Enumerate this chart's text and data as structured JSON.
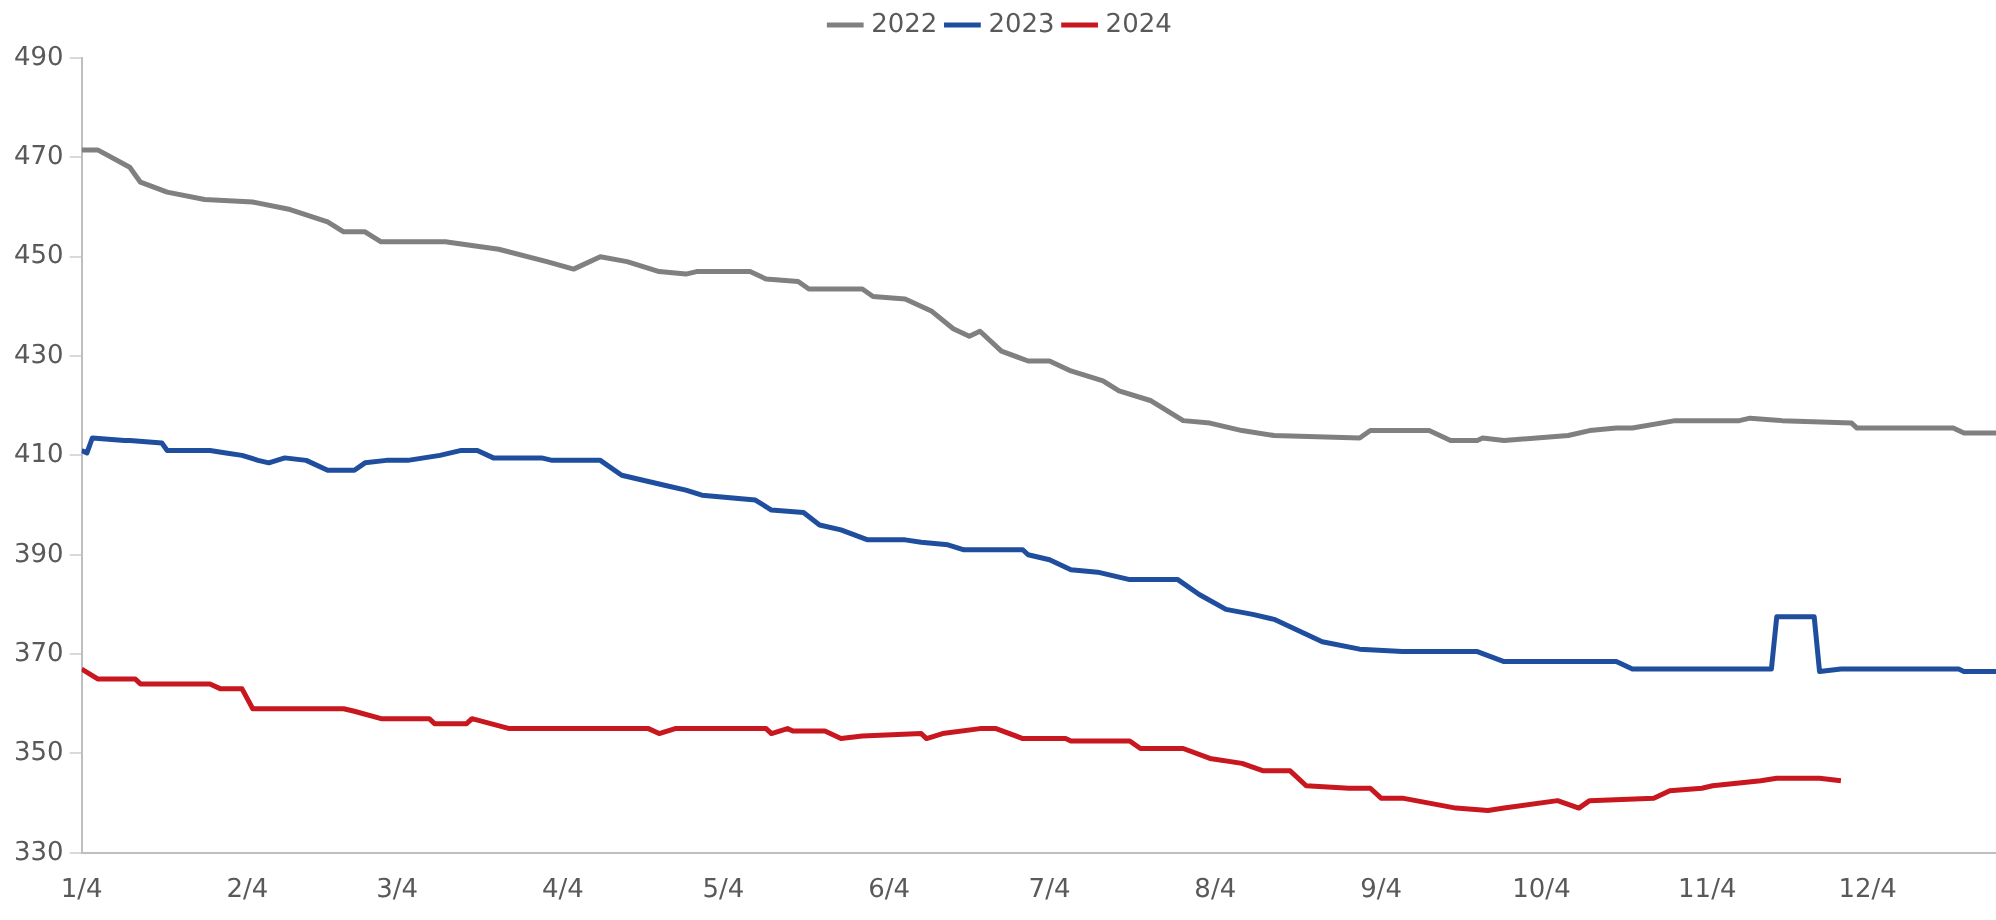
{
  "chart_data": {
    "type": "line",
    "xlim": [
      "--01-04",
      "--12-28"
    ],
    "xticks": [
      {
        "value": "--01-04",
        "label": "1/4"
      },
      {
        "value": "--02-04",
        "label": "2/4"
      },
      {
        "value": "--03-04",
        "label": "3/4"
      },
      {
        "value": "--04-04",
        "label": "4/4"
      },
      {
        "value": "--05-04",
        "label": "5/4"
      },
      {
        "value": "--06-04",
        "label": "6/4"
      },
      {
        "value": "--07-04",
        "label": "7/4"
      },
      {
        "value": "--08-04",
        "label": "8/4"
      },
      {
        "value": "--09-04",
        "label": "9/4"
      },
      {
        "value": "--10-04",
        "label": "10/4"
      },
      {
        "value": "--11-04",
        "label": "11/4"
      },
      {
        "value": "--12-04",
        "label": "12/4"
      }
    ],
    "ylim": [
      330,
      490
    ],
    "yticks": [
      330,
      350,
      370,
      390,
      410,
      430,
      450,
      470,
      490
    ],
    "grid": false,
    "legend": "top",
    "marker": "none",
    "line_style": "solid",
    "series": [
      {
        "name": "2022",
        "color": "#808080",
        "x": [
          "--01-04",
          "--01-07",
          "--01-13",
          "--01-15",
          "--01-20",
          "--01-27",
          "--02-05",
          "--02-12",
          "--02-19",
          "--02-22",
          "--02-26",
          "--03-01",
          "--03-13",
          "--03-23",
          "--04-01",
          "--04-06",
          "--04-11",
          "--04-16",
          "--04-22",
          "--04-27",
          "--04-29",
          "--05-09",
          "--05-12",
          "--05-18",
          "--05-20",
          "--05-30",
          "--06-01",
          "--06-07",
          "--06-12",
          "--06-16",
          "--06-19",
          "--06-21",
          "--06-25",
          "--06-30",
          "--07-04",
          "--07-08",
          "--07-14",
          "--07-17",
          "--07-23",
          "--07-29",
          "--08-03",
          "--08-09",
          "--08-15",
          "--08-31",
          "--09-02",
          "--09-13",
          "--09-17",
          "--09-22",
          "--09-23",
          "--09-27",
          "--10-09",
          "--10-13",
          "--10-18",
          "--10-21",
          "--10-29",
          "--11-10",
          "--11-12",
          "--11-18",
          "--12-01",
          "--12-02",
          "--12-20",
          "--12-22",
          "--12-28"
        ],
        "values": [
          471.5,
          471.5,
          468,
          465,
          463,
          461.5,
          461,
          459.5,
          457,
          455,
          455,
          453,
          453,
          451.5,
          449,
          447.5,
          450,
          449,
          447,
          446.5,
          447,
          447,
          445.5,
          445,
          443.5,
          443.5,
          442,
          441.5,
          439,
          435.5,
          434,
          435,
          431,
          429,
          429,
          427,
          425,
          423,
          421,
          417,
          416.5,
          415,
          414,
          413.5,
          415,
          415,
          413,
          413,
          413.5,
          413,
          414,
          415,
          415.5,
          415.5,
          417,
          417,
          417.5,
          417,
          416.5,
          415.5,
          415.5,
          414.5,
          414.5
        ]
      },
      {
        "name": "2023",
        "color": "#1f4e9e",
        "x": [
          "--01-04",
          "--01-05",
          "--01-06",
          "--01-12",
          "--01-13",
          "--01-19",
          "--01-20",
          "--01-28",
          "--01-31",
          "--02-03",
          "--02-06",
          "--02-08",
          "--02-11",
          "--02-15",
          "--02-19",
          "--02-24",
          "--02-26",
          "--03-02",
          "--03-06",
          "--03-12",
          "--03-16",
          "--03-19",
          "--03-22",
          "--03-31",
          "--04-02",
          "--04-11",
          "--04-15",
          "--04-19",
          "--04-23",
          "--04-27",
          "--04-30",
          "--05-10",
          "--05-13",
          "--05-19",
          "--05-22",
          "--05-26",
          "--05-31",
          "--06-07",
          "--06-10",
          "--06-15",
          "--06-18",
          "--06-21",
          "--06-29",
          "--06-30",
          "--07-04",
          "--07-08",
          "--07-13",
          "--07-19",
          "--07-28",
          "--08-01",
          "--08-06",
          "--08-11",
          "--08-15",
          "--08-19",
          "--08-24",
          "--08-31",
          "--09-08",
          "--09-22",
          "--09-27",
          "--10-18",
          "--10-21",
          "--11-16",
          "--11-17",
          "--11-24",
          "--11-25",
          "--11-29",
          "--12-21",
          "--12-22",
          "--12-28"
        ],
        "values": [
          411,
          410.5,
          413.5,
          413,
          413,
          412.5,
          411,
          411,
          410.5,
          410,
          409,
          408.5,
          409.5,
          409,
          407,
          407,
          408.5,
          409,
          409,
          410,
          411,
          411,
          409.5,
          409.5,
          409,
          409,
          406,
          405,
          404,
          403,
          402,
          401,
          399,
          398.5,
          396,
          395,
          393,
          393,
          392.5,
          392,
          391,
          391,
          391,
          390,
          389,
          387,
          386.5,
          385,
          385,
          382,
          379,
          378,
          377,
          375,
          372.5,
          371,
          370.5,
          370.5,
          368.5,
          368.5,
          367,
          367,
          377.5,
          377.5,
          366.5,
          367,
          367,
          366.5,
          366.5
        ]
      },
      {
        "name": "2024",
        "color": "#c8171e",
        "x": [
          "--01-04",
          "--01-07",
          "--01-14",
          "--01-15",
          "--01-28",
          "--01-30",
          "--02-03",
          "--02-05",
          "--02-22",
          "--02-24",
          "--03-01",
          "--03-10",
          "--03-11",
          "--03-17",
          "--03-18",
          "--03-25",
          "--03-26",
          "--04-20",
          "--04-22",
          "--04-25",
          "--05-12",
          "--05-13",
          "--05-16",
          "--05-17",
          "--05-23",
          "--05-26",
          "--05-30",
          "--06-10",
          "--06-11",
          "--06-14",
          "--06-21",
          "--06-24",
          "--06-29",
          "--07-07",
          "--07-08",
          "--07-19",
          "--07-21",
          "--07-29",
          "--08-03",
          "--08-09",
          "--08-13",
          "--08-18",
          "--08-21",
          "--08-29",
          "--09-02",
          "--09-04",
          "--09-08",
          "--09-13",
          "--09-18",
          "--09-24",
          "--09-27",
          "--10-07",
          "--10-11",
          "--10-13",
          "--10-25",
          "--10-28",
          "--11-03",
          "--11-05",
          "--11-14",
          "--11-17",
          "--11-25",
          "--11-29"
        ],
        "values": [
          367,
          365,
          365,
          364,
          364,
          363,
          363,
          359,
          359,
          358.5,
          357,
          357,
          356,
          356,
          357,
          355,
          355,
          355,
          354,
          355,
          355,
          354,
          355,
          354.5,
          354.5,
          353,
          353.5,
          354,
          353,
          354,
          355,
          355,
          353,
          353,
          352.5,
          352.5,
          351,
          351,
          349,
          348,
          346.5,
          346.5,
          343.5,
          343,
          343,
          341,
          341,
          340,
          339,
          338.5,
          339,
          340.5,
          339,
          340.5,
          341,
          342.5,
          343,
          343.5,
          344.5,
          345,
          345,
          344.5
        ]
      }
    ]
  }
}
